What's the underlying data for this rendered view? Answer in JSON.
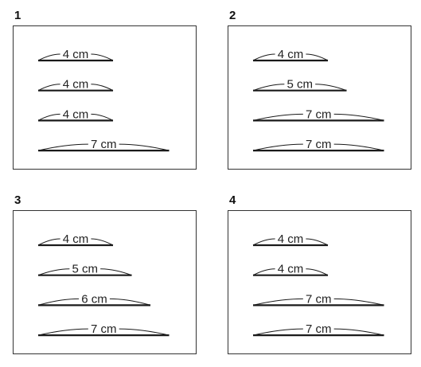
{
  "panels": [
    {
      "number": "1",
      "bars": [
        {
          "label": "4 cm",
          "length_cm": 4
        },
        {
          "label": "4 cm",
          "length_cm": 4
        },
        {
          "label": "4 cm",
          "length_cm": 4
        },
        {
          "label": "7 cm",
          "length_cm": 7
        }
      ]
    },
    {
      "number": "2",
      "bars": [
        {
          "label": "4 cm",
          "length_cm": 4
        },
        {
          "label": "5 cm",
          "length_cm": 5
        },
        {
          "label": "7 cm",
          "length_cm": 7
        },
        {
          "label": "7 cm",
          "length_cm": 7
        }
      ]
    },
    {
      "number": "3",
      "bars": [
        {
          "label": "4 cm",
          "length_cm": 4
        },
        {
          "label": "5 cm",
          "length_cm": 5
        },
        {
          "label": "6 cm",
          "length_cm": 6
        },
        {
          "label": "7 cm",
          "length_cm": 7
        }
      ]
    },
    {
      "number": "4",
      "bars": [
        {
          "label": "4 cm",
          "length_cm": 4
        },
        {
          "label": "4 cm",
          "length_cm": 4
        },
        {
          "label": "7 cm",
          "length_cm": 7
        },
        {
          "label": "7 cm",
          "length_cm": 7
        }
      ]
    }
  ]
}
